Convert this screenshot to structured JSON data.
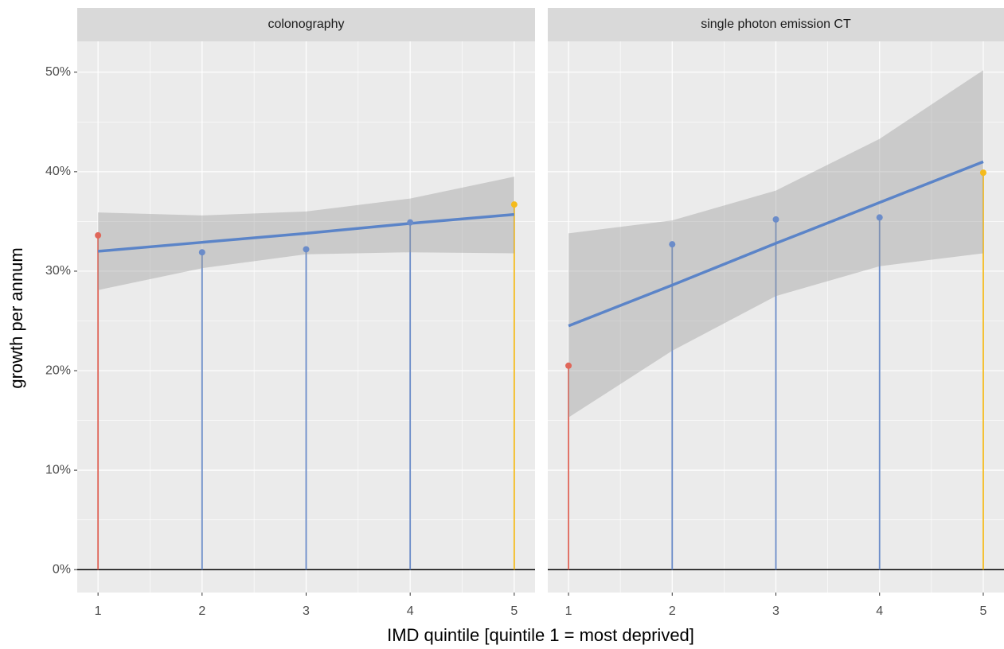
{
  "xlabel": "IMD quintile [quintile 1 = most deprived]",
  "ylabel": "growth per annum",
  "chart_data": [
    {
      "type": "lollipop",
      "title": "colonography",
      "x": [
        1,
        2,
        3,
        4,
        5
      ],
      "values": [
        33.6,
        31.9,
        32.2,
        34.9,
        36.7
      ],
      "colors": [
        "#e0675a",
        "#6b8cc9",
        "#6b8cc9",
        "#6b8cc9",
        "#f5bb1c"
      ],
      "fit": [
        32.0,
        32.9,
        33.8,
        34.8,
        35.7
      ],
      "fit_color": "#5b84c8",
      "band_lower": [
        28.1,
        30.3,
        31.7,
        31.9,
        31.8
      ],
      "band_upper": [
        35.9,
        35.6,
        36.0,
        37.3,
        39.5
      ],
      "reference_line": 0,
      "xlim": [
        0.8,
        5.2
      ],
      "xticks": [
        1,
        2,
        3,
        4,
        5
      ],
      "ylim": [
        -2.3,
        53.1
      ],
      "yticks": [
        {
          "value": 0,
          "label": "0%"
        },
        {
          "value": 10,
          "label": "10%"
        },
        {
          "value": 20,
          "label": "20%"
        },
        {
          "value": 30,
          "label": "30%"
        },
        {
          "value": 40,
          "label": "40%"
        },
        {
          "value": 50,
          "label": "50%"
        }
      ],
      "grid": true
    },
    {
      "type": "lollipop",
      "title": "single photon emission CT",
      "x": [
        1,
        2,
        3,
        4,
        5
      ],
      "values": [
        20.5,
        32.7,
        35.2,
        35.4,
        39.9
      ],
      "colors": [
        "#e0675a",
        "#6b8cc9",
        "#6b8cc9",
        "#6b8cc9",
        "#f5bb1c"
      ],
      "fit": [
        24.5,
        28.6,
        32.8,
        36.9,
        41.0
      ],
      "fit_color": "#5b84c8",
      "band_lower": [
        15.3,
        22.0,
        27.5,
        30.5,
        31.8
      ],
      "band_upper": [
        33.8,
        35.1,
        38.1,
        43.3,
        50.2
      ],
      "reference_line": 0,
      "xlim": [
        0.8,
        5.2
      ],
      "xticks": [
        1,
        2,
        3,
        4,
        5
      ],
      "ylim": [
        -2.3,
        53.1
      ],
      "yticks": [
        {
          "value": 0,
          "label": "0%"
        },
        {
          "value": 10,
          "label": "10%"
        },
        {
          "value": 20,
          "label": "20%"
        },
        {
          "value": 30,
          "label": "30%"
        },
        {
          "value": 40,
          "label": "40%"
        },
        {
          "value": 50,
          "label": "50%"
        }
      ],
      "grid": true
    }
  ]
}
